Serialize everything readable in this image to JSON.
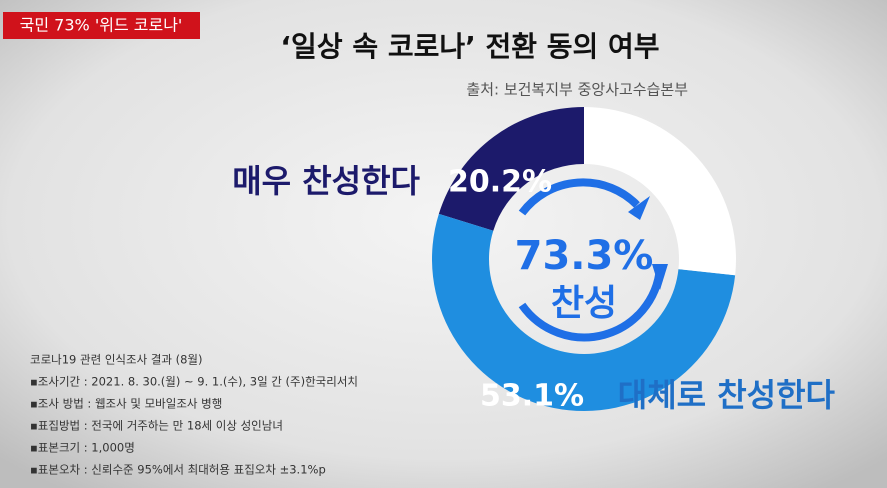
{
  "header": {
    "tag": "국민 73% '위드 코로나'"
  },
  "chart_data": {
    "type": "donut",
    "title": "‘일상 속 코로나’ 전환 동의 여부",
    "source": "출처: 보건복지부 중앙사고수습본부",
    "categories": [
      "매우 찬성한다",
      "대체로 찬성한다",
      null
    ],
    "values": [
      20.2,
      53.1,
      26.7
    ],
    "value_labels": [
      "20.2%",
      "53.1%",
      null
    ],
    "colors": [
      "#1c1a6b",
      "#1f8ee0",
      "#ffffff"
    ],
    "center_label": [
      "73.3%",
      "찬성"
    ]
  },
  "notes": [
    "코로나19 관련 인식조사 결과 (8월)",
    "▪조사기간 : 2021. 8. 30.(월) ~ 9. 1.(수), 3일 간 (주)한국리서치",
    "▪조사 방법 : 웹조사 및 모바일조사 병행",
    "▪표집방법 : 전국에 거주하는 만 18세 이상 성인남녀",
    "▪표본크기 : 1,000명",
    "▪표본오차 : 신뢰수준 95%에서 최대허용 표집오차 ±3.1%p"
  ]
}
